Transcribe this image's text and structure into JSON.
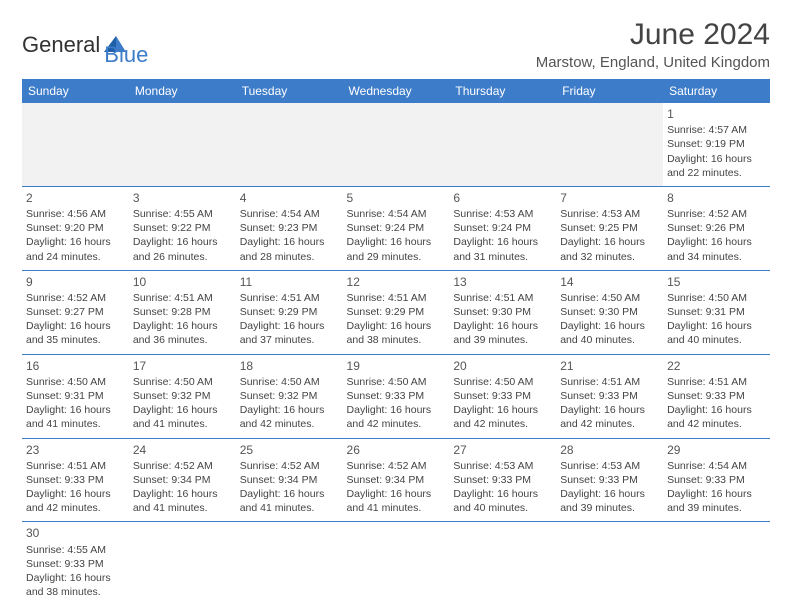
{
  "logo": {
    "text1": "General",
    "text2": "Blue"
  },
  "header": {
    "title": "June 2024",
    "location": "Marstow, England, United Kingdom"
  },
  "colors": {
    "header_bg": "#3d7cc9",
    "header_text": "#ffffff",
    "border": "#3d7cc9",
    "body_text": "#444444"
  },
  "daynames": [
    "Sunday",
    "Monday",
    "Tuesday",
    "Wednesday",
    "Thursday",
    "Friday",
    "Saturday"
  ],
  "weeks": [
    [
      null,
      null,
      null,
      null,
      null,
      null,
      {
        "n": "1",
        "sr": "4:57 AM",
        "ss": "9:19 PM",
        "dl": "16 hours and 22 minutes."
      }
    ],
    [
      {
        "n": "2",
        "sr": "4:56 AM",
        "ss": "9:20 PM",
        "dl": "16 hours and 24 minutes."
      },
      {
        "n": "3",
        "sr": "4:55 AM",
        "ss": "9:22 PM",
        "dl": "16 hours and 26 minutes."
      },
      {
        "n": "4",
        "sr": "4:54 AM",
        "ss": "9:23 PM",
        "dl": "16 hours and 28 minutes."
      },
      {
        "n": "5",
        "sr": "4:54 AM",
        "ss": "9:24 PM",
        "dl": "16 hours and 29 minutes."
      },
      {
        "n": "6",
        "sr": "4:53 AM",
        "ss": "9:24 PM",
        "dl": "16 hours and 31 minutes."
      },
      {
        "n": "7",
        "sr": "4:53 AM",
        "ss": "9:25 PM",
        "dl": "16 hours and 32 minutes."
      },
      {
        "n": "8",
        "sr": "4:52 AM",
        "ss": "9:26 PM",
        "dl": "16 hours and 34 minutes."
      }
    ],
    [
      {
        "n": "9",
        "sr": "4:52 AM",
        "ss": "9:27 PM",
        "dl": "16 hours and 35 minutes."
      },
      {
        "n": "10",
        "sr": "4:51 AM",
        "ss": "9:28 PM",
        "dl": "16 hours and 36 minutes."
      },
      {
        "n": "11",
        "sr": "4:51 AM",
        "ss": "9:29 PM",
        "dl": "16 hours and 37 minutes."
      },
      {
        "n": "12",
        "sr": "4:51 AM",
        "ss": "9:29 PM",
        "dl": "16 hours and 38 minutes."
      },
      {
        "n": "13",
        "sr": "4:51 AM",
        "ss": "9:30 PM",
        "dl": "16 hours and 39 minutes."
      },
      {
        "n": "14",
        "sr": "4:50 AM",
        "ss": "9:30 PM",
        "dl": "16 hours and 40 minutes."
      },
      {
        "n": "15",
        "sr": "4:50 AM",
        "ss": "9:31 PM",
        "dl": "16 hours and 40 minutes."
      }
    ],
    [
      {
        "n": "16",
        "sr": "4:50 AM",
        "ss": "9:31 PM",
        "dl": "16 hours and 41 minutes."
      },
      {
        "n": "17",
        "sr": "4:50 AM",
        "ss": "9:32 PM",
        "dl": "16 hours and 41 minutes."
      },
      {
        "n": "18",
        "sr": "4:50 AM",
        "ss": "9:32 PM",
        "dl": "16 hours and 42 minutes."
      },
      {
        "n": "19",
        "sr": "4:50 AM",
        "ss": "9:33 PM",
        "dl": "16 hours and 42 minutes."
      },
      {
        "n": "20",
        "sr": "4:50 AM",
        "ss": "9:33 PM",
        "dl": "16 hours and 42 minutes."
      },
      {
        "n": "21",
        "sr": "4:51 AM",
        "ss": "9:33 PM",
        "dl": "16 hours and 42 minutes."
      },
      {
        "n": "22",
        "sr": "4:51 AM",
        "ss": "9:33 PM",
        "dl": "16 hours and 42 minutes."
      }
    ],
    [
      {
        "n": "23",
        "sr": "4:51 AM",
        "ss": "9:33 PM",
        "dl": "16 hours and 42 minutes."
      },
      {
        "n": "24",
        "sr": "4:52 AM",
        "ss": "9:34 PM",
        "dl": "16 hours and 41 minutes."
      },
      {
        "n": "25",
        "sr": "4:52 AM",
        "ss": "9:34 PM",
        "dl": "16 hours and 41 minutes."
      },
      {
        "n": "26",
        "sr": "4:52 AM",
        "ss": "9:34 PM",
        "dl": "16 hours and 41 minutes."
      },
      {
        "n": "27",
        "sr": "4:53 AM",
        "ss": "9:33 PM",
        "dl": "16 hours and 40 minutes."
      },
      {
        "n": "28",
        "sr": "4:53 AM",
        "ss": "9:33 PM",
        "dl": "16 hours and 39 minutes."
      },
      {
        "n": "29",
        "sr": "4:54 AM",
        "ss": "9:33 PM",
        "dl": "16 hours and 39 minutes."
      }
    ],
    [
      {
        "n": "30",
        "sr": "4:55 AM",
        "ss": "9:33 PM",
        "dl": "16 hours and 38 minutes."
      },
      null,
      null,
      null,
      null,
      null,
      null
    ]
  ],
  "labels": {
    "sunrise": "Sunrise: ",
    "sunset": "Sunset: ",
    "daylight": "Daylight: "
  }
}
